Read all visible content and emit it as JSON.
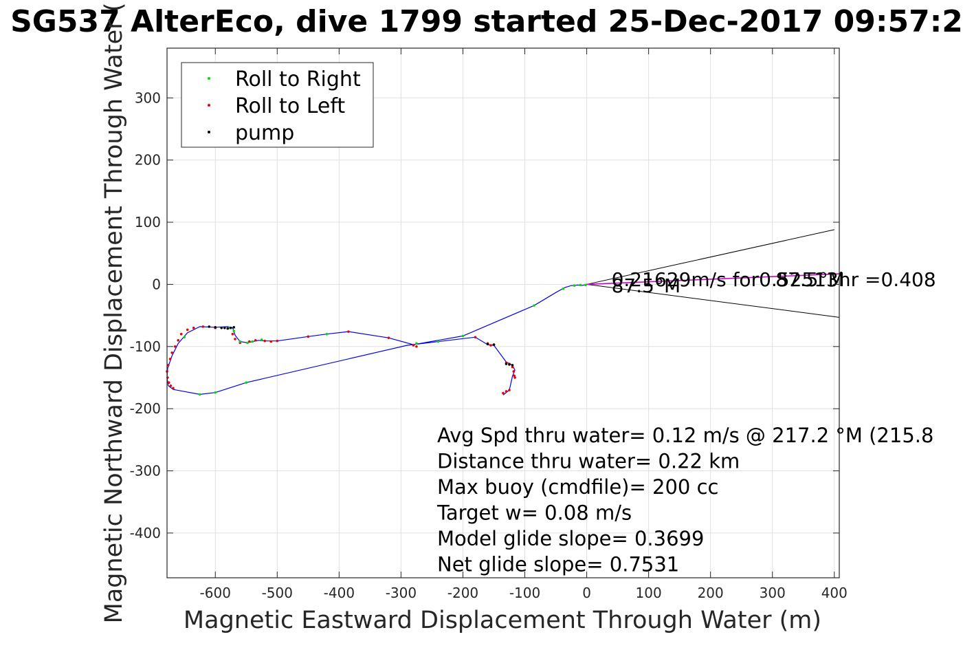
{
  "chart_data": {
    "type": "line",
    "title": "SG537 AlterEco, dive 1799 started 25-Dec-2017 09:57:2",
    "xlabel": "Magnetic Eastward Displacement Through Water (m)",
    "ylabel": "Magnetic Northward Displacement Through Water (",
    "xlim": [
      -678,
      408
    ],
    "ylim": [
      -472,
      380
    ],
    "x_ticks": [
      -600,
      -500,
      -400,
      -300,
      -200,
      -100,
      0,
      100,
      200,
      300,
      400
    ],
    "y_ticks": [
      300,
      200,
      100,
      0,
      -100,
      -200,
      -300,
      -400
    ],
    "x_tick_labels": [
      "-600",
      "-500",
      "-400",
      "-300",
      "-200",
      "-100",
      "0",
      "100",
      "200",
      "300",
      "400"
    ],
    "y_tick_labels": [
      "300",
      "200",
      "100",
      "0",
      "-100",
      "-200",
      "-300",
      "-400"
    ],
    "grid": true,
    "legend_placement": "top-left",
    "legend": [
      {
        "label": "Roll to Right",
        "color": "#00dd00"
      },
      {
        "label": "Roll to Left",
        "color": "#ee0000"
      },
      {
        "label": "pump",
        "color": "#000000"
      }
    ],
    "colors": {
      "track": "#0000ee",
      "current": "#cc00cc",
      "cone": "#000000",
      "grid": "#e0e0e0"
    },
    "track": {
      "x": [
        0,
        -8,
        -15,
        -20,
        -25,
        -35,
        -48,
        -85,
        -200,
        -280,
        -320,
        -385,
        -420,
        -450,
        -500,
        -520,
        -530,
        -540,
        -548,
        -560,
        -568,
        -572,
        -580,
        -600,
        -625,
        -645,
        -660,
        -670,
        -677,
        -678,
        -676,
        -668,
        -625,
        -600,
        -550,
        -290,
        -180,
        -160,
        -150,
        -130,
        -120,
        -116,
        -120,
        -125,
        -135
      ],
      "y": [
        0,
        -2,
        -1,
        -2,
        -2,
        -5,
        -12,
        -34,
        -83,
        -97,
        -86,
        -76,
        -80,
        -84,
        -91,
        -91,
        -90,
        -92,
        -94,
        -92,
        -82,
        -70,
        -68,
        -69,
        -68,
        -78,
        -95,
        -115,
        -135,
        -150,
        -163,
        -169,
        -177,
        -174,
        -158,
        -98,
        -85,
        -97,
        -98,
        -125,
        -130,
        -138,
        -148,
        -170,
        -178
      ]
    },
    "roll_right": {
      "x": [
        -10,
        -20,
        -38,
        -85,
        -200,
        -240,
        -275,
        -420,
        -525,
        -540,
        -548,
        -560,
        -570,
        -578,
        -650,
        -625,
        -600,
        -550,
        -2
      ],
      "y": [
        -1,
        -2,
        -7,
        -34,
        -83,
        -92,
        -95,
        -80,
        -89,
        -92,
        -94,
        -92,
        -75,
        -70,
        -85,
        -177,
        -174,
        -158,
        -1
      ]
    },
    "roll_left": {
      "x": [
        -280,
        -275,
        -320,
        -385,
        -450,
        -500,
        -510,
        -520,
        -535,
        -545,
        -560,
        -568,
        -572,
        -600,
        -620,
        -635,
        -645,
        -655,
        -660,
        -665,
        -670,
        -673,
        -676,
        -678,
        -677,
        -675,
        -672,
        -668,
        -180,
        -160,
        -155,
        -150,
        -130,
        -125,
        -120,
        -118,
        -117,
        -116,
        -125,
        -130,
        -135
      ],
      "y": [
        -98,
        -100,
        -86,
        -76,
        -84,
        -91,
        -92,
        -91,
        -90,
        -92,
        -94,
        -88,
        -80,
        -70,
        -68,
        -70,
        -73,
        -80,
        -90,
        -100,
        -110,
        -120,
        -130,
        -140,
        -150,
        -158,
        -163,
        -167,
        -85,
        -95,
        -98,
        -97,
        -126,
        -128,
        -133,
        -140,
        -147,
        -150,
        -170,
        -172,
        -175
      ]
    },
    "pump": {
      "x": [
        -610,
        -600,
        -590,
        -585,
        -580,
        -575,
        -570,
        -130,
        -125,
        -120,
        -150,
        -160
      ],
      "y": [
        -68,
        -69,
        -70,
        -70,
        -71,
        -70,
        -69,
        -128,
        -129,
        -130,
        -97,
        -96
      ]
    },
    "current_line": {
      "x": [
        0,
        410
      ],
      "y": [
        0,
        17
      ]
    },
    "cone_lines": [
      {
        "x": [
          0,
          400
        ],
        "y": [
          0,
          88
        ]
      },
      {
        "x": [
          0,
          408
        ],
        "y": [
          0,
          -53
        ]
      }
    ],
    "annotations": [
      {
        "text": "0.21629m/s for0.52513hr =0.408",
        "x": 40,
        "y": -3
      },
      {
        "text": "87.5°M",
        "x": 40,
        "y": -13
      },
      {
        "text": "87.5°M",
        "x": 305,
        "y": -3
      }
    ],
    "stats": [
      "Avg Spd thru water=  0.12 m/s @ 217.2 °M (215.8",
      "Distance thru water=  0.22 km",
      "Max buoy (cmdfile)= 200 cc",
      "Target w= 0.08 m/s",
      "Model glide slope= 0.3699",
      "Net glide slope= 0.7531"
    ]
  }
}
